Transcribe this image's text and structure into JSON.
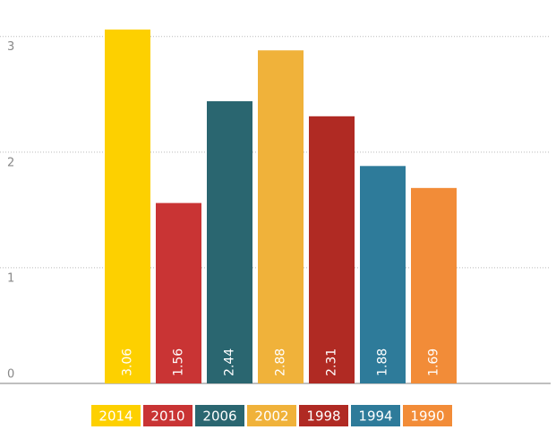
{
  "chart_data": {
    "type": "bar",
    "categories": [
      "2014",
      "2010",
      "2006",
      "2002",
      "1998",
      "1994",
      "1990"
    ],
    "values": [
      3.06,
      1.56,
      2.44,
      2.88,
      2.31,
      1.88,
      1.69
    ],
    "colors": [
      "#fdd000",
      "#c93434",
      "#2a6670",
      "#f0b23a",
      "#b02a23",
      "#2e7b9a",
      "#f28c38"
    ],
    "ylim": [
      0,
      3.3
    ],
    "yticks": [
      0,
      1,
      2,
      3
    ],
    "grid": true,
    "legend": "bottom"
  }
}
